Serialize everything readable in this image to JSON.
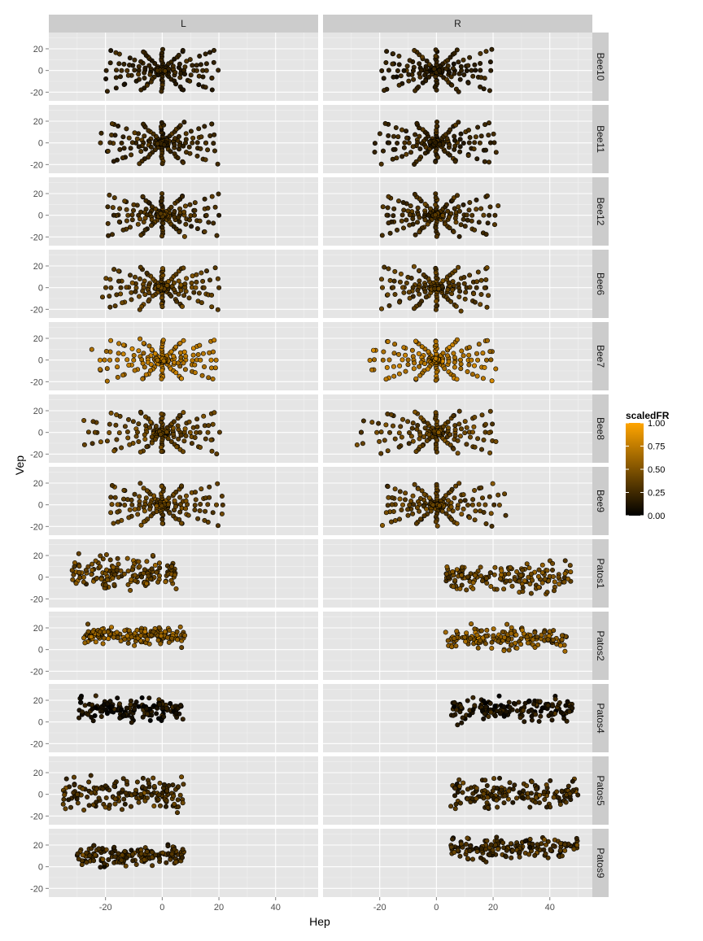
{
  "chart_data": {
    "type": "scatter",
    "facet_columns": [
      "L",
      "R"
    ],
    "facet_rows": [
      "Bee10",
      "Bee11",
      "Bee12",
      "Bee6",
      "Bee7",
      "Bee8",
      "Bee9",
      "Patos1",
      "Patos2",
      "Patos4",
      "Patos5",
      "Patos9"
    ],
    "xlabel": "Hep",
    "ylabel": "Vep",
    "xlim": [
      -40,
      55
    ],
    "ylim": [
      -28,
      35
    ],
    "x_ticks": [
      -20,
      0,
      20,
      40
    ],
    "y_ticks": [
      -20,
      0,
      20
    ],
    "x_tick_labels": [
      "-20",
      "0",
      "20",
      "40"
    ],
    "y_tick_labels": [
      "-20",
      "0",
      "20"
    ],
    "grid": true,
    "legend": {
      "title": "scaledFR",
      "placement": "right",
      "min": 0,
      "max": 1,
      "ticks": [
        0,
        0.25,
        0.5,
        0.75,
        1
      ],
      "tick_labels": [
        "0.00",
        "0.25",
        "0.50",
        "0.75",
        "1.00"
      ],
      "colors": [
        "#000000",
        "#ffa500"
      ]
    },
    "series": [
      {
        "row": "Bee10",
        "col": "L",
        "pattern": "star",
        "cx": 0,
        "cy": 0,
        "xmin": -20,
        "xmax": 20,
        "ymin": -20,
        "ymax": 20,
        "meanFR": 0.22
      },
      {
        "row": "Bee10",
        "col": "R",
        "pattern": "star",
        "cx": 0,
        "cy": 0,
        "xmin": -20,
        "xmax": 20,
        "ymin": -20,
        "ymax": 20,
        "meanFR": 0.22
      },
      {
        "row": "Bee11",
        "col": "L",
        "pattern": "star",
        "cx": 0,
        "cy": 0,
        "xmin": -22,
        "xmax": 20,
        "ymin": -20,
        "ymax": 20,
        "meanFR": 0.25
      },
      {
        "row": "Bee11",
        "col": "R",
        "pattern": "star",
        "cx": 0,
        "cy": 0,
        "xmin": -22,
        "xmax": 22,
        "ymin": -20,
        "ymax": 20,
        "meanFR": 0.25
      },
      {
        "row": "Bee12",
        "col": "L",
        "pattern": "star",
        "cx": 0,
        "cy": 0,
        "xmin": -20,
        "xmax": 20,
        "ymin": -20,
        "ymax": 20,
        "meanFR": 0.3
      },
      {
        "row": "Bee12",
        "col": "R",
        "pattern": "star",
        "cx": 0,
        "cy": 0,
        "xmin": -20,
        "xmax": 22,
        "ymin": -20,
        "ymax": 20,
        "meanFR": 0.3
      },
      {
        "row": "Bee6",
        "col": "L",
        "pattern": "star",
        "cx": 0,
        "cy": 0,
        "xmin": -22,
        "xmax": 20,
        "ymin": -20,
        "ymax": 20,
        "meanFR": 0.38
      },
      {
        "row": "Bee6",
        "col": "R",
        "pattern": "star",
        "cx": 0,
        "cy": 0,
        "xmin": -20,
        "xmax": 20,
        "ymin": -22,
        "ymax": 20,
        "meanFR": 0.38
      },
      {
        "row": "Bee7",
        "col": "L",
        "pattern": "star",
        "cx": 0,
        "cy": 0,
        "xmin": -25,
        "xmax": 20,
        "ymin": -20,
        "ymax": 20,
        "meanFR": 0.7
      },
      {
        "row": "Bee7",
        "col": "R",
        "pattern": "star",
        "cx": 0,
        "cy": 0,
        "xmin": -25,
        "xmax": 22,
        "ymin": -20,
        "ymax": 20,
        "meanFR": 0.7
      },
      {
        "row": "Bee8",
        "col": "L",
        "pattern": "star",
        "cx": 0,
        "cy": 0,
        "xmin": -30,
        "xmax": 20,
        "ymin": -20,
        "ymax": 20,
        "meanFR": 0.4
      },
      {
        "row": "Bee8",
        "col": "R",
        "pattern": "star",
        "cx": 0,
        "cy": 0,
        "xmin": -30,
        "xmax": 22,
        "ymin": -20,
        "ymax": 20,
        "meanFR": 0.4
      },
      {
        "row": "Bee9",
        "col": "L",
        "pattern": "star",
        "cx": 0,
        "cy": 0,
        "xmin": -20,
        "xmax": 22,
        "ymin": -20,
        "ymax": 20,
        "meanFR": 0.4
      },
      {
        "row": "Bee9",
        "col": "R",
        "pattern": "star",
        "cx": 0,
        "cy": 0,
        "xmin": -20,
        "xmax": 25,
        "ymin": -20,
        "ymax": 20,
        "meanFR": 0.4
      },
      {
        "row": "Patos1",
        "col": "L",
        "pattern": "cloud",
        "xmin": -32,
        "xmax": 5,
        "ymin": -22,
        "ymax": 28,
        "meanFR": 0.45
      },
      {
        "row": "Patos1",
        "col": "R",
        "pattern": "cloud",
        "xmin": 3,
        "xmax": 48,
        "ymin": -20,
        "ymax": 20,
        "meanFR": 0.45
      },
      {
        "row": "Patos2",
        "col": "L",
        "pattern": "cloud",
        "xmin": -28,
        "xmax": 8,
        "ymin": 0,
        "ymax": 27,
        "meanFR": 0.55
      },
      {
        "row": "Patos2",
        "col": "R",
        "pattern": "cloud",
        "xmin": 3,
        "xmax": 46,
        "ymin": -5,
        "ymax": 27,
        "meanFR": 0.55
      },
      {
        "row": "Patos4",
        "col": "L",
        "pattern": "cloud",
        "xmin": -30,
        "xmax": 8,
        "ymin": -5,
        "ymax": 28,
        "meanFR": 0.12
      },
      {
        "row": "Patos4",
        "col": "R",
        "pattern": "cloud",
        "xmin": 5,
        "xmax": 48,
        "ymin": -5,
        "ymax": 28,
        "meanFR": 0.15
      },
      {
        "row": "Patos5",
        "col": "L",
        "pattern": "cloud",
        "xmin": -35,
        "xmax": 8,
        "ymin": -25,
        "ymax": 25,
        "meanFR": 0.3
      },
      {
        "row": "Patos5",
        "col": "R",
        "pattern": "cloud",
        "xmin": 5,
        "xmax": 50,
        "ymin": -20,
        "ymax": 20,
        "meanFR": 0.3
      },
      {
        "row": "Patos9",
        "col": "L",
        "pattern": "cloud",
        "xmin": -30,
        "xmax": 8,
        "ymin": -5,
        "ymax": 25,
        "meanFR": 0.3
      },
      {
        "row": "Patos9",
        "col": "R",
        "pattern": "cloud",
        "xmin": 5,
        "xmax": 50,
        "ymin": 0,
        "ymax": 35,
        "meanFR": 0.3
      }
    ]
  }
}
